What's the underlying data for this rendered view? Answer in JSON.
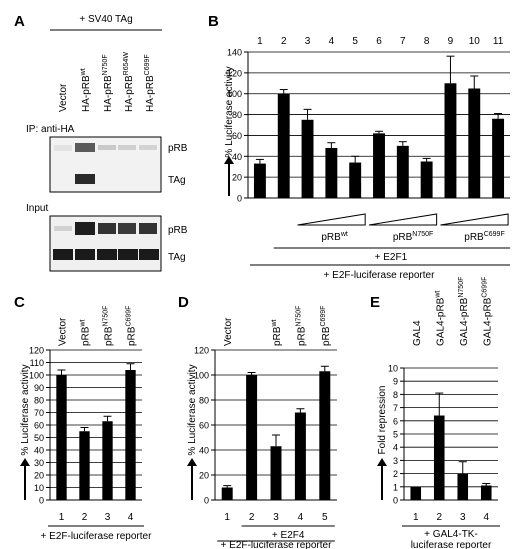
{
  "panel_a": {
    "letter": "A",
    "condition": "+ SV40 TAg",
    "lanes": [
      {
        "base": "Vector",
        "sup": ""
      },
      {
        "base": "HA-pRB",
        "sup": "wt"
      },
      {
        "base": "HA-pRB",
        "sup": "N750F"
      },
      {
        "base": "HA-pRB",
        "sup": "R654W"
      },
      {
        "base": "HA-pRB",
        "sup": "C699F"
      }
    ],
    "ip_label": "IP: anti-HA",
    "input_label": "Input",
    "band_labels": {
      "prb": "pRB",
      "tag": "TAg"
    }
  },
  "chart_data": [
    {
      "panel": "B",
      "type": "bar",
      "categories": [
        "1",
        "2",
        "3",
        "4",
        "5",
        "6",
        "7",
        "8",
        "9",
        "10",
        "11"
      ],
      "values": [
        33,
        100,
        75,
        48,
        34,
        62,
        50,
        35,
        110,
        105,
        76
      ],
      "errors": [
        4,
        4,
        10,
        5,
        6,
        2,
        4,
        3,
        26,
        12,
        5
      ],
      "ylabel": "% Luciferase activity",
      "yticks": [
        0,
        20,
        40,
        60,
        80,
        100,
        120,
        140
      ],
      "ylim": [
        0,
        140
      ],
      "grid": true,
      "titrations": [
        {
          "base": "pRB",
          "sup": "wt",
          "lanes": [
            3,
            5
          ]
        },
        {
          "base": "pRB",
          "sup": "N750F",
          "lanes": [
            6,
            8
          ]
        },
        {
          "base": "pRB",
          "sup": "C699F",
          "lanes": [
            9,
            11
          ]
        }
      ],
      "treatments": [
        "+ E2F1",
        "+ E2F-luciferase reporter"
      ]
    },
    {
      "panel": "C",
      "type": "bar",
      "categories": [
        "1",
        "2",
        "3",
        "4"
      ],
      "lane_labels": [
        {
          "base": "Vector",
          "sup": ""
        },
        {
          "base": "pRB",
          "sup": "wt"
        },
        {
          "base": "pRB",
          "sup": "N750F"
        },
        {
          "base": "pRB",
          "sup": "C699F"
        }
      ],
      "values": [
        100,
        55,
        63,
        104
      ],
      "errors": [
        4,
        3,
        4,
        5
      ],
      "ylabel": "% Luciferase activity",
      "yticks": [
        0,
        10,
        20,
        30,
        40,
        50,
        60,
        70,
        80,
        90,
        100,
        110,
        120
      ],
      "ylim": [
        0,
        120
      ],
      "grid": true,
      "treatments": [
        "+ E2F-luciferase",
        "reporter"
      ]
    },
    {
      "panel": "D",
      "type": "bar",
      "categories": [
        "1",
        "2",
        "3",
        "4",
        "5"
      ],
      "lane_labels": [
        {
          "base": "Vector",
          "sup": ""
        },
        {
          "base": "Vector",
          "sup": ""
        },
        {
          "base": "pRB",
          "sup": "wt"
        },
        {
          "base": "pRB",
          "sup": "N750F"
        },
        {
          "base": "pRB",
          "sup": "C699F"
        }
      ],
      "values": [
        10,
        100,
        43,
        70,
        103
      ],
      "errors": [
        1.5,
        2,
        9,
        3,
        4
      ],
      "ylabel": "% Luciferase activity",
      "yticks": [
        0,
        20,
        40,
        60,
        80,
        100,
        120
      ],
      "ylim": [
        0,
        120
      ],
      "grid": true,
      "treatments": [
        "+ E2F4",
        "+ E2F-luciferase reporter"
      ]
    },
    {
      "panel": "E",
      "type": "bar",
      "categories": [
        "1",
        "2",
        "3",
        "4"
      ],
      "lane_labels": [
        {
          "base": "GAL4",
          "sup": ""
        },
        {
          "base": "GAL4-pRB",
          "sup": "wt"
        },
        {
          "base": "GAL4-pRB",
          "sup": "N750F"
        },
        {
          "base": "GAL4-pRB",
          "sup": "C699F"
        }
      ],
      "values": [
        1,
        6.4,
        2,
        1.1
      ],
      "errors": [
        0,
        1.7,
        0.9,
        0.15
      ],
      "ylabel": "Fold repression",
      "yticks": [
        0,
        1,
        2,
        3,
        4,
        5,
        6,
        7,
        8,
        9,
        10
      ],
      "ylim": [
        0,
        10
      ],
      "grid": true,
      "treatments": [
        "+ GAL4-TK-",
        "luciferase reporter"
      ]
    }
  ]
}
